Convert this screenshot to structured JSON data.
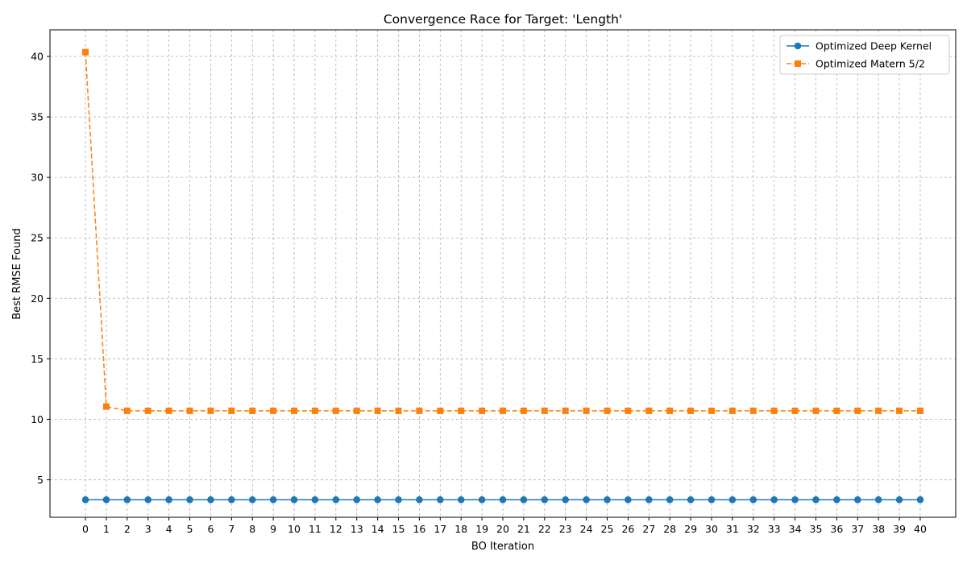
{
  "chart_data": {
    "type": "line",
    "title": "Convergence Race for Target: 'Length'",
    "xlabel": "BO Iteration",
    "ylabel": "Best RMSE Found",
    "x": [
      0,
      1,
      2,
      3,
      4,
      5,
      6,
      7,
      8,
      9,
      10,
      11,
      12,
      13,
      14,
      15,
      16,
      17,
      18,
      19,
      20,
      21,
      22,
      23,
      24,
      25,
      26,
      27,
      28,
      29,
      30,
      31,
      32,
      33,
      34,
      35,
      36,
      37,
      38,
      39,
      40
    ],
    "xlim": [
      -1.7,
      41.7
    ],
    "ylim": [
      1.9,
      42.2
    ],
    "yticks": [
      5,
      10,
      15,
      20,
      25,
      30,
      35,
      40
    ],
    "grid": true,
    "legend_position": "top-right",
    "series": [
      {
        "name": "Optimized Deep Kernel",
        "color": "#1f77b4",
        "line_style": "solid",
        "marker": "circle",
        "values": [
          3.35,
          3.35,
          3.35,
          3.35,
          3.35,
          3.35,
          3.35,
          3.35,
          3.35,
          3.35,
          3.35,
          3.35,
          3.35,
          3.35,
          3.35,
          3.35,
          3.35,
          3.35,
          3.35,
          3.35,
          3.35,
          3.35,
          3.35,
          3.35,
          3.35,
          3.35,
          3.35,
          3.35,
          3.35,
          3.35,
          3.35,
          3.35,
          3.35,
          3.35,
          3.35,
          3.35,
          3.35,
          3.35,
          3.35,
          3.35,
          3.35
        ]
      },
      {
        "name": "Optimized Matern 5/2",
        "color": "#ff7f0e",
        "line_style": "dashed",
        "marker": "square",
        "values": [
          40.35,
          11.05,
          10.7,
          10.7,
          10.7,
          10.7,
          10.7,
          10.7,
          10.7,
          10.7,
          10.7,
          10.7,
          10.7,
          10.7,
          10.7,
          10.7,
          10.7,
          10.7,
          10.7,
          10.7,
          10.7,
          10.7,
          10.7,
          10.7,
          10.7,
          10.7,
          10.7,
          10.7,
          10.7,
          10.7,
          10.7,
          10.7,
          10.7,
          10.7,
          10.7,
          10.7,
          10.7,
          10.7,
          10.7,
          10.7,
          10.7
        ]
      }
    ]
  }
}
